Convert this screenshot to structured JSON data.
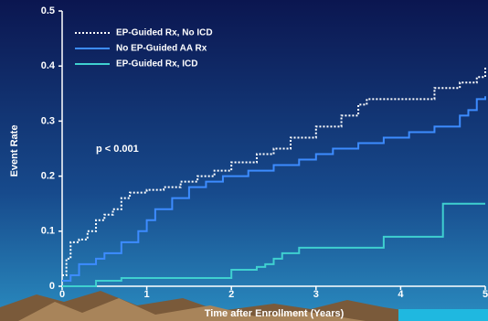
{
  "chart_data": {
    "type": "step",
    "x_label": "Time after Enrollment (Years)",
    "y_label": "Event Rate",
    "annotation": "p < 0.001",
    "xlim": [
      0,
      5
    ],
    "xticks": [
      0,
      1,
      2,
      3,
      4,
      5
    ],
    "ylim": [
      0,
      0.5
    ],
    "yticks": [
      0,
      0.1,
      0.2,
      0.3,
      0.4,
      0.5
    ],
    "series": [
      {
        "name": "EP-Guided Rx, No ICD",
        "color": "#ffffff",
        "dashed": true,
        "x": [
          0,
          0.05,
          0.1,
          0.2,
          0.3,
          0.4,
          0.5,
          0.6,
          0.7,
          0.8,
          1.0,
          1.2,
          1.4,
          1.6,
          1.8,
          2.0,
          2.3,
          2.5,
          2.7,
          3.0,
          3.3,
          3.5,
          3.6,
          4.4,
          4.7,
          4.9,
          5.0
        ],
        "values": [
          0.02,
          0.05,
          0.08,
          0.085,
          0.1,
          0.12,
          0.13,
          0.14,
          0.16,
          0.17,
          0.175,
          0.18,
          0.19,
          0.2,
          0.21,
          0.225,
          0.24,
          0.25,
          0.27,
          0.29,
          0.31,
          0.33,
          0.34,
          0.36,
          0.37,
          0.38,
          0.4
        ]
      },
      {
        "name": "No EP-Guided AA Rx",
        "color": "#3d8cff",
        "dashed": false,
        "x": [
          0,
          0.1,
          0.2,
          0.4,
          0.5,
          0.7,
          0.9,
          1.0,
          1.1,
          1.3,
          1.5,
          1.7,
          1.9,
          2.2,
          2.5,
          2.8,
          3.0,
          3.2,
          3.5,
          3.8,
          4.1,
          4.4,
          4.7,
          4.8,
          4.9,
          5.0
        ],
        "values": [
          0.01,
          0.02,
          0.04,
          0.05,
          0.06,
          0.08,
          0.1,
          0.12,
          0.14,
          0.16,
          0.18,
          0.19,
          0.2,
          0.21,
          0.22,
          0.23,
          0.24,
          0.25,
          0.26,
          0.27,
          0.28,
          0.29,
          0.31,
          0.32,
          0.34,
          0.345
        ]
      },
      {
        "name": "EP-Guided Rx, ICD",
        "color": "#3fd0d0",
        "dashed": false,
        "x": [
          0,
          0.4,
          0.7,
          2.0,
          2.3,
          2.4,
          2.5,
          2.6,
          2.8,
          3.8,
          4.5,
          5.0
        ],
        "values": [
          0,
          0.01,
          0.015,
          0.03,
          0.035,
          0.04,
          0.05,
          0.06,
          0.07,
          0.09,
          0.15,
          0.15
        ]
      }
    ]
  }
}
